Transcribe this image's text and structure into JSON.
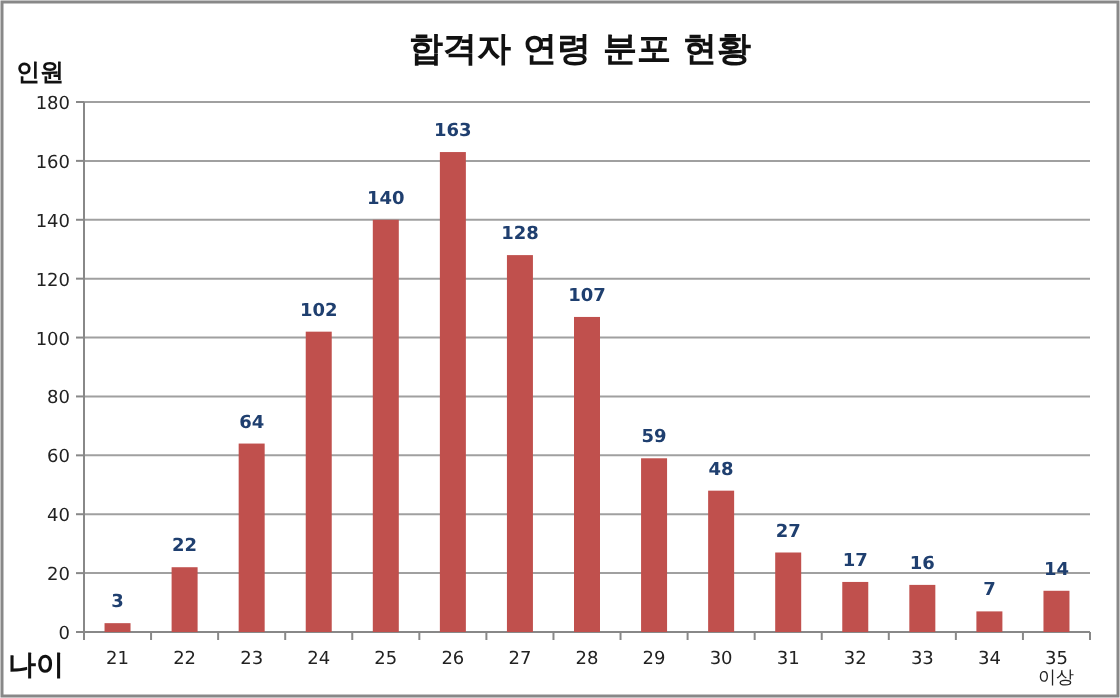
{
  "chart_data": {
    "type": "bar",
    "title": "합격자 연령 분포 현황",
    "ylabel": "인원",
    "xlabel": "나이",
    "categories": [
      "21",
      "22",
      "23",
      "24",
      "25",
      "26",
      "27",
      "28",
      "29",
      "30",
      "31",
      "32",
      "33",
      "34",
      "35\n이상"
    ],
    "values": [
      3,
      22,
      64,
      102,
      140,
      163,
      128,
      107,
      59,
      48,
      27,
      17,
      16,
      7,
      14
    ],
    "color": "#c0504d",
    "ylim": [
      0,
      180
    ],
    "yticks": [
      0,
      20,
      40,
      60,
      80,
      100,
      120,
      140,
      160,
      180
    ],
    "grid": "y",
    "data_labels": true
  }
}
